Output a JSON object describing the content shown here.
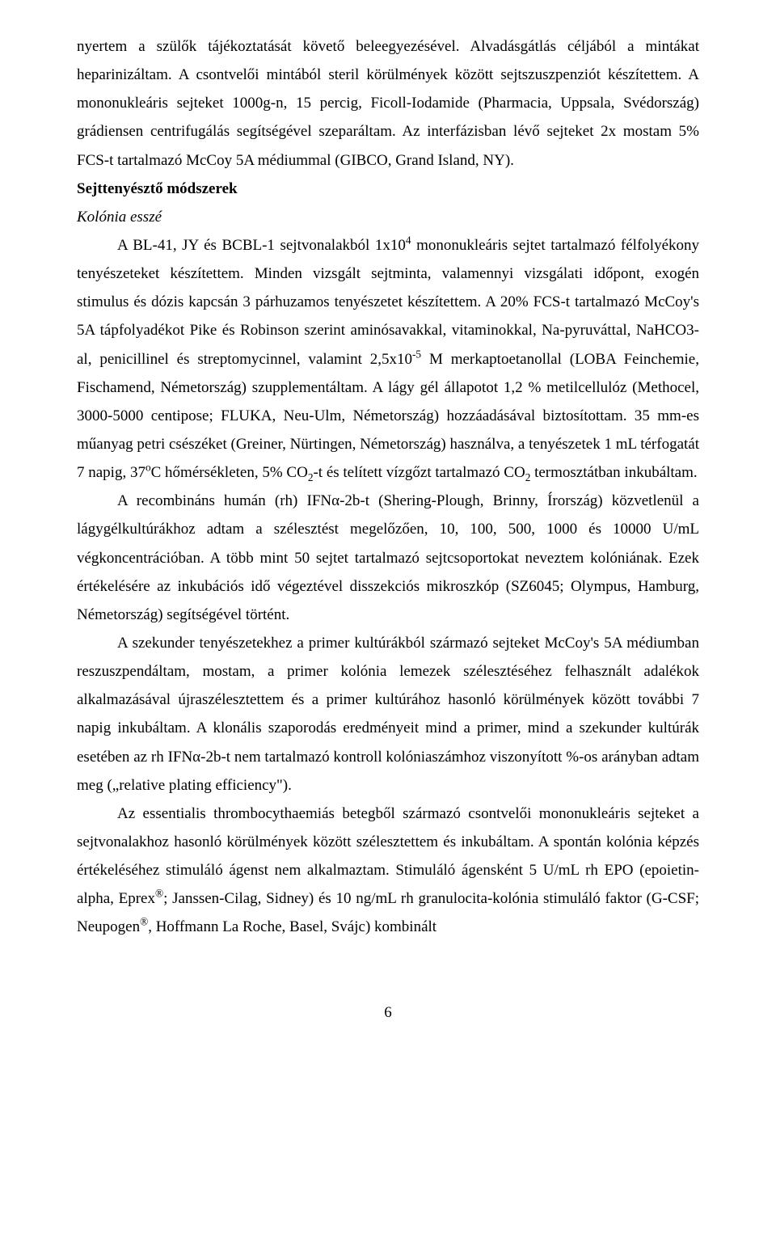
{
  "para1": "nyertem a szülők tájékoztatását követő beleegyezésével. Alvadásgátlás céljából a mintákat heparinizáltam. A csontvelői mintából steril körülmények között sejtszuszpenziót készítettem. A mononukleáris sejteket 1000g-n, 15 percig, Ficoll-Iodamide (Pharmacia, Uppsala, Svédország) grádiensen centrifugálás segítségével szeparáltam. Az interfázisban lévő sejteket 2x mostam 5% FCS-t tartalmazó McCoy 5A médiummal (GIBCO, Grand Island, NY).",
  "heading1": "Sejttenyésztő módszerek",
  "heading2": "Kolónia esszé",
  "para2_a": "A BL-41, JY és BCBL-1 sejtvonalakból 1x10",
  "para2_sup": "4",
  "para2_b": " mononukleáris sejtet tartalmazó félfolyékony tenyészeteket készítettem. Minden vizsgált sejtminta, valamennyi vizsgálati időpont, exogén stimulus és dózis kapcsán 3 párhuzamos tenyészetet készítettem. A 20% FCS-t tartalmazó McCoy's 5A tápfolyadékot Pike és Robinson szerint aminósavakkal, vitaminokkal, Na-pyruváttal, NaHCO3-al, penicillinel és streptomycinnel, valamint 2,5x10",
  "para2_sup2": "-5",
  "para2_c": " M merkaptoetanollal (LOBA Feinchemie, Fischamend, Németország) szupplementáltam. A lágy gél állapotot 1,2 % metilcellulóz (Methocel, 3000-5000 centipose; FLUKA, Neu-Ulm, Németország) hozzáadásával biztosítottam. 35 mm-es műanyag petri csészéket (Greiner, Nürtingen, Németország) használva, a tenyészetek 1 mL térfogatát 7 napig, 37",
  "para2_deg": "o",
  "para2_d": "C hőmérsékleten, 5% CO",
  "para2_sub1": "2",
  "para2_e": "-t és telített vízgőzt tartalmazó CO",
  "para2_sub2": "2",
  "para2_f": " termosztátban inkubáltam.",
  "para3": "A recombináns humán (rh) IFNα-2b-t (Shering-Plough, Brinny, Írország) közvetlenül a lágygélkultúrákhoz adtam a szélesztést megelőzően, 10, 100, 500, 1000 és 10000 U/mL végkoncentrációban. A több mint 50 sejtet tartalmazó sejtcsoportokat neveztem kolóniának. Ezek értékelésére az inkubációs idő végeztével disszekciós mikroszkóp (SZ6045; Olympus, Hamburg, Németország) segítségével történt.",
  "para4": "A szekunder tenyészetekhez a primer kultúrákból származó sejteket McCoy's 5A médiumban reszuszpendáltam, mostam, a primer kolónia lemezek szélesztéséhez felhasznált adalékok alkalmazásával újraszélesztettem és a primer kultúrához hasonló körülmények között további 7 napig inkubáltam. A klonális szaporodás eredményeit mind a primer, mind a szekunder kultúrák esetében az rh IFNα-2b-t nem tartalmazó kontroll kolóniaszámhoz viszonyított %-os arányban adtam meg („relative plating efficiency\").",
  "para5_a": "Az essentialis thrombocythaemiás betegből származó csontvelői mononukleáris sejteket a sejtvonalakhoz hasonló körülmények között szélesztettem és inkubáltam. A spontán kolónia képzés értékeléséhez stimuláló ágenst nem alkalmaztam. Stimuláló ágensként 5 U/mL rh EPO (epoietin-alpha, Eprex",
  "para5_reg1": "®",
  "para5_b": "; Janssen-Cilag, Sidney) és 10 ng/mL rh granulocita-kolónia stimuláló faktor (G-CSF; Neupogen",
  "para5_reg2": "®",
  "para5_c": ", Hoffmann La Roche, Basel, Svájc) kombinált",
  "pagenum": "6"
}
